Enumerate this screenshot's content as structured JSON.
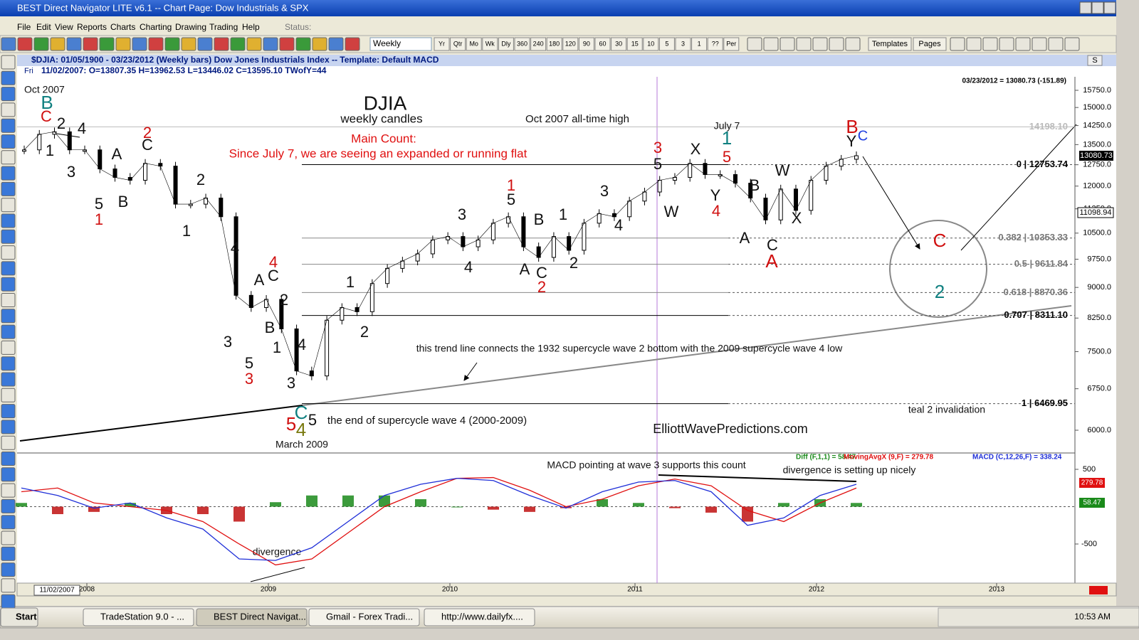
{
  "window": {
    "title": "BEST Direct Navigator LITE v6.1  --  Chart Page: Dow Industrials & SPX"
  },
  "menu": [
    "File",
    "Edit",
    "View",
    "Reports",
    "Charts",
    "Charting",
    "Drawing",
    "Trading",
    "Help"
  ],
  "status_label": "Status:",
  "toolbar": {
    "interval": "Weekly",
    "buttons": [
      "Yr",
      "Qtr",
      "Mo",
      "Wk",
      "Dly",
      "360",
      "240",
      "180",
      "120",
      "90",
      "60",
      "30",
      "15",
      "10",
      "5",
      "3",
      "1",
      "??",
      "Per"
    ],
    "templates": "Templates",
    "pages": "Pages"
  },
  "chart": {
    "header": "$DJIA:  01/05/1900 - 03/23/2012  (Weekly bars)   Dow Jones Industrials Index   --   Template: Default MACD",
    "scale_button": "S",
    "info_day": "Fri",
    "info": "11/02/2007:   O=13807.35   H=13962.53   L=13446.02   C=13595.10   TWofY=44",
    "last_summary": "03/23/2012 = 13080.73 (-151.89)",
    "last_price": "13080.73",
    "cursor_price": "11098.94",
    "price": {
      "log_scale": true,
      "yticks": [
        {
          "value": 15750,
          "label": "15750.0"
        },
        {
          "value": 15000,
          "label": "15000.0"
        },
        {
          "value": 14250,
          "label": "14250.0"
        },
        {
          "value": 13500,
          "label": "13500.0"
        },
        {
          "value": 12750,
          "label": "12750.0"
        },
        {
          "value": 12000,
          "label": "12000.0"
        },
        {
          "value": 11250,
          "label": "11250.0"
        },
        {
          "value": 10500,
          "label": "10500.0"
        },
        {
          "value": 9750,
          "label": "9750.0"
        },
        {
          "value": 9000,
          "label": "9000.0"
        },
        {
          "value": 8250,
          "label": "8250.0"
        },
        {
          "value": 7500,
          "label": "7500.0"
        },
        {
          "value": 6750,
          "label": "6750.0"
        },
        {
          "value": 6000,
          "label": "6000.0"
        }
      ],
      "closes": [
        13300,
        13900,
        14000,
        13300,
        13300,
        12600,
        12300,
        12200,
        12800,
        12700,
        11400,
        11400,
        11600,
        11000,
        8800,
        8500,
        8700,
        8000,
        7100,
        7000,
        8200,
        8500,
        8400,
        9100,
        9500,
        9700,
        9900,
        10300,
        10400,
        10100,
        10300,
        10800,
        11000,
        10100,
        9800,
        10400,
        10000,
        10800,
        11100,
        11000,
        11500,
        11800,
        12200,
        12300,
        12800,
        12400,
        12400,
        12100,
        11600,
        10900,
        11900,
        11200,
        12200,
        12700,
        12950,
        13080
      ],
      "high_line": {
        "value": 14198.1,
        "label": "14198.10"
      },
      "fib_levels": [
        {
          "value": 12753.74,
          "label": "0 | 12753.74"
        },
        {
          "value": 10353.33,
          "label": "0.382 | 10353.33"
        },
        {
          "value": 9611.84,
          "label": "0.5 | 9611.84"
        },
        {
          "value": 8870.36,
          "label": "0.618 | 8870.36"
        },
        {
          "value": 8311.1,
          "label": "0.707 | 8311.10"
        },
        {
          "value": 6469.95,
          "label": "1 | 6469.95"
        }
      ]
    },
    "wave_labels": {
      "black": [
        "2",
        "4",
        "1",
        "3",
        "A",
        "C",
        "5",
        "B",
        "2",
        "1",
        "4",
        "A",
        "C",
        "2",
        "B",
        "1",
        "3",
        "5",
        "4",
        "3",
        "5",
        "1",
        "2",
        "3",
        "4",
        "5",
        "B",
        "1",
        "A",
        "C",
        "2",
        "3",
        "4",
        "5",
        "W",
        "X",
        "Y",
        "B",
        "W",
        "X",
        "A",
        "C",
        "Y"
      ],
      "red": [
        "C",
        "2",
        "1",
        "4",
        "3",
        "1",
        "2",
        "3",
        "5",
        "4",
        "A",
        "B",
        "5",
        "C"
      ],
      "teal": [
        "B",
        "1",
        "C",
        "2"
      ],
      "blue": [
        "C"
      ],
      "olive": [
        "4"
      ]
    },
    "notes": [
      "Oct 2007",
      "DJIA",
      "weekly candles",
      "Main Count:",
      "Since July 7, we are seeing an expanded or running flat",
      "Oct 2007 all-time high",
      "July 7",
      "this trend line connects the 1932 supercycle wave 2 bottom with the 2009 supercycle wave 4 low",
      "the end of supercycle wave 4 (2000-2009)",
      "March 2009",
      "ElliottWavePredictions.com",
      "teal 2 invalidation",
      "MACD pointing at wave 3 supports this count",
      "divergence is setting up nicely",
      "divergence"
    ],
    "macd": {
      "legend": [
        "Diff (F,1,1) = 58.47",
        "MovingAvgX (9,F) = 279.78",
        "MACD (C,12,26,F) = 338.24"
      ],
      "yticks": [
        500,
        -500
      ],
      "macd_color": "#1f2fd8",
      "signal_color": "#e01010",
      "histogram_colors": [
        "#1a8a1a",
        "#c01010"
      ],
      "macd": [
        250,
        150,
        -20,
        50,
        -150,
        -300,
        -700,
        -720,
        -550,
        -200,
        150,
        300,
        380,
        350,
        150,
        -20,
        200,
        330,
        350,
        200,
        -250,
        -150,
        150,
        300
      ],
      "signal": [
        200,
        250,
        50,
        0,
        -50,
        -200,
        -500,
        -780,
        -700,
        -350,
        0,
        200,
        380,
        390,
        220,
        0,
        100,
        280,
        370,
        280,
        -50,
        -200,
        50,
        250
      ],
      "histogram": [
        50,
        -100,
        -70,
        50,
        -100,
        -100,
        -200,
        60,
        150,
        150,
        150,
        100,
        0,
        -40,
        -70,
        -20,
        100,
        50,
        -20,
        -80,
        -200,
        50,
        100,
        50
      ],
      "signal_box": "279.78",
      "diff_box": "58.47"
    },
    "date_axis": {
      "cursor_date": "11/02/2007",
      "years": [
        "2008",
        "2009",
        "2010",
        "2011",
        "2012",
        "2013"
      ]
    }
  },
  "taskbar": {
    "start": "Start",
    "tasks": [
      "TradeStation 9.0 - ...",
      "BEST Direct Navigat...",
      "Gmail - Forex Tradi...",
      "http://www.dailyfx...."
    ],
    "clock": "10:53 AM"
  }
}
